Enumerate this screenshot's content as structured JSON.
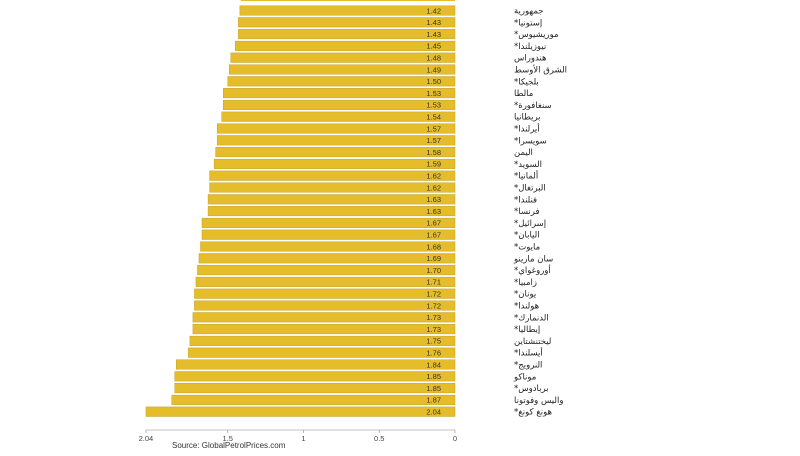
{
  "chart_data": {
    "type": "bar",
    "orientation": "horizontal",
    "bar_color": "#e5bd2a",
    "bar_edge_color": "#b8961e",
    "value_label_color": "#333333",
    "xlim": [
      2.04,
      0
    ],
    "x_ticks": [
      "2.04",
      "1.5",
      "1",
      "0.5",
      "0"
    ],
    "x_tick_values": [
      2.04,
      1.5,
      1,
      0.5,
      0
    ],
    "categories": [
      "جمهورية",
      "إستونيا*",
      "موريشيوس*",
      "نيوزيلندا*",
      "هندوراس",
      "الشرق الأوسط",
      "بلجيكا*",
      "مالطا",
      "سنغافورة*",
      "بريطانيا",
      "أيرلندا*",
      "سويسرا*",
      "اليمن",
      "السويد*",
      "ألمانيا*",
      "البرتغال*",
      "فنلندا*",
      "فرنسا*",
      "إسرائيل*",
      "اليابان*",
      "مايوت*",
      "سان مارينو",
      "أوروغواي*",
      "زامبيا*",
      "يونان*",
      "هولندا*",
      "الدنمارك*",
      "إيطاليا*",
      "ليختنشتاين",
      "أيسلندا*",
      "النرويج*",
      "موناكو",
      "بربادوس*",
      "واليس وفوتونا",
      "هونغ كونغ*"
    ],
    "values": [
      1.42,
      1.43,
      1.43,
      1.45,
      1.48,
      1.49,
      1.5,
      1.53,
      1.53,
      1.54,
      1.57,
      1.57,
      1.58,
      1.59,
      1.62,
      1.62,
      1.63,
      1.63,
      1.67,
      1.67,
      1.68,
      1.69,
      1.7,
      1.71,
      1.72,
      1.72,
      1.73,
      1.73,
      1.75,
      1.76,
      1.84,
      1.85,
      1.85,
      1.87,
      2.04
    ],
    "value_labels": [
      "1.42",
      "1.43",
      "1.43",
      "1.45",
      "1.48",
      "1.49",
      "1.50",
      "1.53",
      "1.53",
      "1.54",
      "1.57",
      "1.57",
      "1.58",
      "1.59",
      "1.62",
      "1.62",
      "1.63",
      "1.63",
      "1.67",
      "1.67",
      "1.68",
      "1.69",
      "1.70",
      "1.71",
      "1.72",
      "1.72",
      "1.73",
      "1.73",
      "1.75",
      "1.76",
      "1.84",
      "1.85",
      "1.85",
      "1.87",
      "2.04"
    ],
    "source": "Source: GlobalPetrolPrices.com"
  }
}
